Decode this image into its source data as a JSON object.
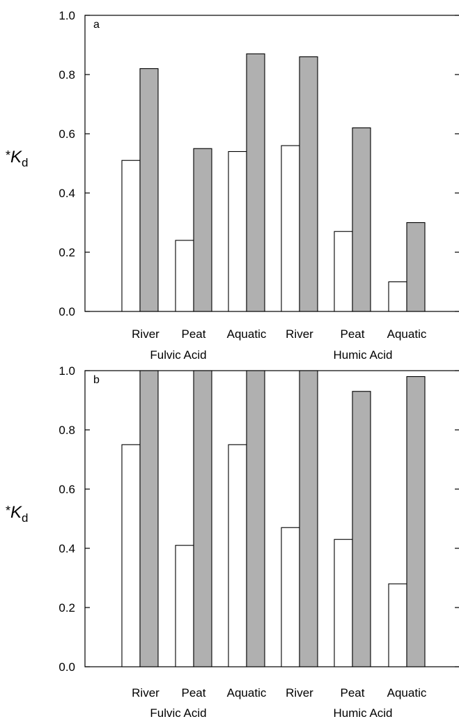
{
  "chart_data": [
    {
      "type": "bar",
      "panel_label": "a",
      "ylabel_prefix": "*",
      "ylabel_main": "K",
      "ylabel_sub": "d",
      "ylim": [
        0,
        1.0
      ],
      "yticks": [
        "0.0",
        "0.2",
        "0.4",
        "0.6",
        "0.8",
        "1.0"
      ],
      "categories": [
        "River",
        "Peat",
        "Aquatic",
        "River",
        "Peat",
        "Aquatic"
      ],
      "groups": [
        "Fulvic Acid",
        "Humic Acid"
      ],
      "series": [
        {
          "fill": "#ffffff",
          "values": [
            0.51,
            0.24,
            0.54,
            0.56,
            0.27,
            0.1
          ]
        },
        {
          "fill": "#b0b0b0",
          "values": [
            0.82,
            0.55,
            0.87,
            0.86,
            0.62,
            0.3
          ]
        }
      ],
      "grid": false
    },
    {
      "type": "bar",
      "panel_label": "b",
      "ylabel_prefix": "*",
      "ylabel_main": "K",
      "ylabel_sub": "d",
      "ylim": [
        0,
        1.0
      ],
      "yticks": [
        "0.0",
        "0.2",
        "0.4",
        "0.6",
        "0.8",
        "1.0"
      ],
      "categories": [
        "River",
        "Peat",
        "Aquatic",
        "River",
        "Peat",
        "Aquatic"
      ],
      "groups": [
        "Fulvic Acid",
        "Humic Acid"
      ],
      "series": [
        {
          "fill": "#ffffff",
          "values": [
            0.75,
            0.41,
            0.75,
            0.47,
            0.43,
            0.28
          ]
        },
        {
          "fill": "#b0b0b0",
          "values": [
            1.0,
            1.0,
            1.0,
            1.0,
            0.93,
            0.98
          ]
        }
      ],
      "grid": false
    }
  ]
}
